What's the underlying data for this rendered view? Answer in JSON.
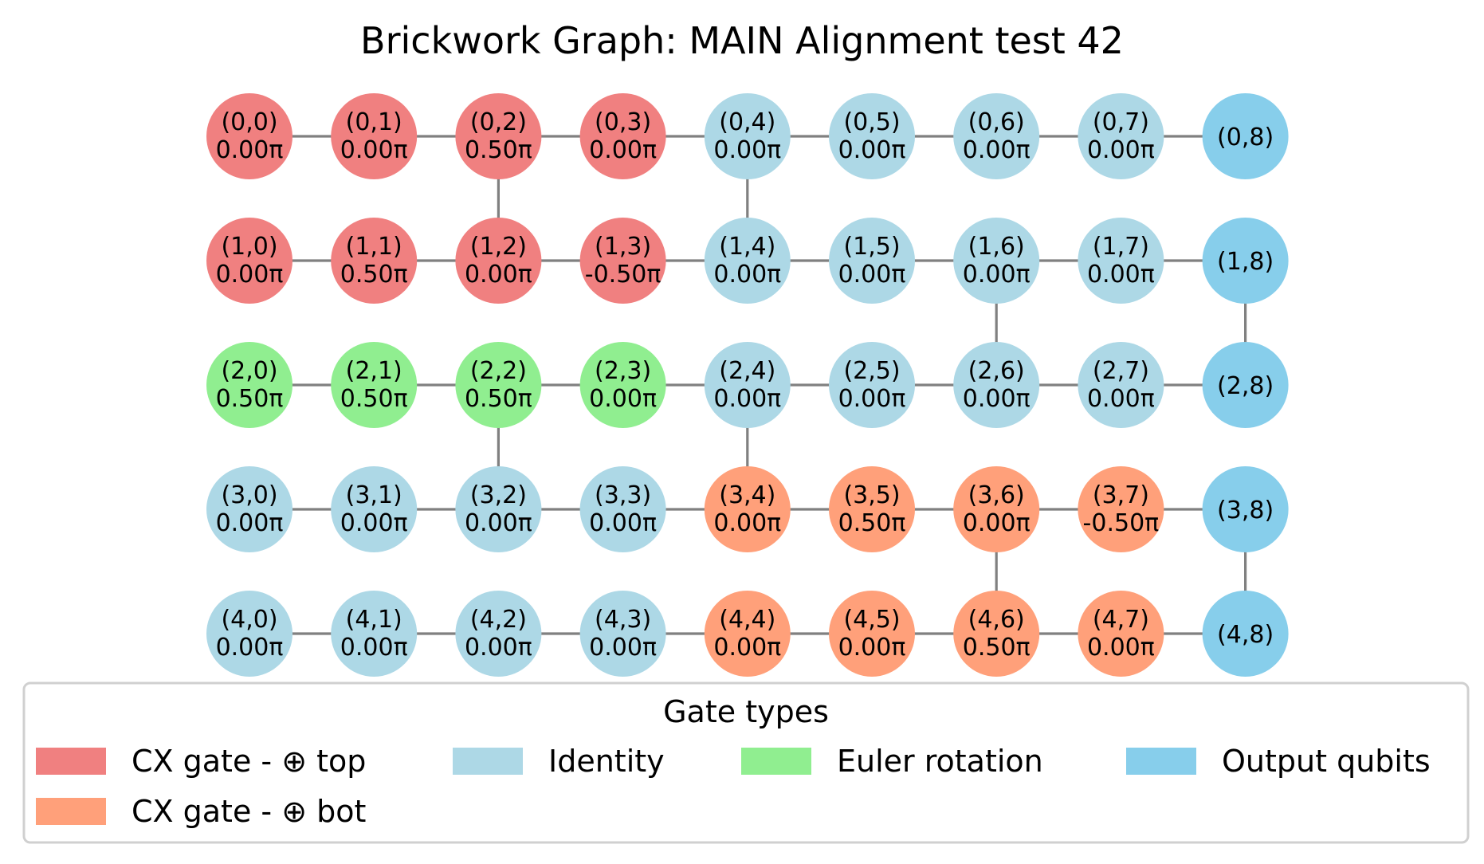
{
  "title": "Brickwork Graph: MAIN Alignment test 42",
  "colors": {
    "cx_top": "#f08080",
    "cx_bot": "#ffa07a",
    "identity": "#add8e6",
    "euler": "#90ee90",
    "output": "#87ceeb",
    "edge": "#808080"
  },
  "rows": 5,
  "cols": 9,
  "nodes": [
    {
      "id": "(0,0)",
      "angle": "0.00π",
      "type": "cx_top"
    },
    {
      "id": "(0,1)",
      "angle": "0.00π",
      "type": "cx_top"
    },
    {
      "id": "(0,2)",
      "angle": "0.50π",
      "type": "cx_top"
    },
    {
      "id": "(0,3)",
      "angle": "0.00π",
      "type": "cx_top"
    },
    {
      "id": "(0,4)",
      "angle": "0.00π",
      "type": "identity"
    },
    {
      "id": "(0,5)",
      "angle": "0.00π",
      "type": "identity"
    },
    {
      "id": "(0,6)",
      "angle": "0.00π",
      "type": "identity"
    },
    {
      "id": "(0,7)",
      "angle": "0.00π",
      "type": "identity"
    },
    {
      "id": "(0,8)",
      "angle": "",
      "type": "output"
    },
    {
      "id": "(1,0)",
      "angle": "0.00π",
      "type": "cx_top"
    },
    {
      "id": "(1,1)",
      "angle": "0.50π",
      "type": "cx_top"
    },
    {
      "id": "(1,2)",
      "angle": "0.00π",
      "type": "cx_top"
    },
    {
      "id": "(1,3)",
      "angle": "-0.50π",
      "type": "cx_top"
    },
    {
      "id": "(1,4)",
      "angle": "0.00π",
      "type": "identity"
    },
    {
      "id": "(1,5)",
      "angle": "0.00π",
      "type": "identity"
    },
    {
      "id": "(1,6)",
      "angle": "0.00π",
      "type": "identity"
    },
    {
      "id": "(1,7)",
      "angle": "0.00π",
      "type": "identity"
    },
    {
      "id": "(1,8)",
      "angle": "",
      "type": "output"
    },
    {
      "id": "(2,0)",
      "angle": "0.50π",
      "type": "euler"
    },
    {
      "id": "(2,1)",
      "angle": "0.50π",
      "type": "euler"
    },
    {
      "id": "(2,2)",
      "angle": "0.50π",
      "type": "euler"
    },
    {
      "id": "(2,3)",
      "angle": "0.00π",
      "type": "euler"
    },
    {
      "id": "(2,4)",
      "angle": "0.00π",
      "type": "identity"
    },
    {
      "id": "(2,5)",
      "angle": "0.00π",
      "type": "identity"
    },
    {
      "id": "(2,6)",
      "angle": "0.00π",
      "type": "identity"
    },
    {
      "id": "(2,7)",
      "angle": "0.00π",
      "type": "identity"
    },
    {
      "id": "(2,8)",
      "angle": "",
      "type": "output"
    },
    {
      "id": "(3,0)",
      "angle": "0.00π",
      "type": "identity"
    },
    {
      "id": "(3,1)",
      "angle": "0.00π",
      "type": "identity"
    },
    {
      "id": "(3,2)",
      "angle": "0.00π",
      "type": "identity"
    },
    {
      "id": "(3,3)",
      "angle": "0.00π",
      "type": "identity"
    },
    {
      "id": "(3,4)",
      "angle": "0.00π",
      "type": "cx_bot"
    },
    {
      "id": "(3,5)",
      "angle": "0.50π",
      "type": "cx_bot"
    },
    {
      "id": "(3,6)",
      "angle": "0.00π",
      "type": "cx_bot"
    },
    {
      "id": "(3,7)",
      "angle": "-0.50π",
      "type": "cx_bot"
    },
    {
      "id": "(3,8)",
      "angle": "",
      "type": "output"
    },
    {
      "id": "(4,0)",
      "angle": "0.00π",
      "type": "identity"
    },
    {
      "id": "(4,1)",
      "angle": "0.00π",
      "type": "identity"
    },
    {
      "id": "(4,2)",
      "angle": "0.00π",
      "type": "identity"
    },
    {
      "id": "(4,3)",
      "angle": "0.00π",
      "type": "identity"
    },
    {
      "id": "(4,4)",
      "angle": "0.00π",
      "type": "cx_bot"
    },
    {
      "id": "(4,5)",
      "angle": "0.00π",
      "type": "cx_bot"
    },
    {
      "id": "(4,6)",
      "angle": "0.50π",
      "type": "cx_bot"
    },
    {
      "id": "(4,7)",
      "angle": "0.00π",
      "type": "cx_bot"
    },
    {
      "id": "(4,8)",
      "angle": "",
      "type": "output"
    }
  ],
  "vertical_edges": [
    {
      "from": "(0,2)",
      "to": "(1,2)"
    },
    {
      "from": "(0,4)",
      "to": "(1,4)"
    },
    {
      "from": "(1,6)",
      "to": "(2,6)"
    },
    {
      "from": "(1,8)",
      "to": "(2,8)"
    },
    {
      "from": "(2,2)",
      "to": "(3,2)"
    },
    {
      "from": "(2,4)",
      "to": "(3,4)"
    },
    {
      "from": "(3,6)",
      "to": "(4,6)"
    },
    {
      "from": "(3,8)",
      "to": "(4,8)"
    }
  ],
  "legend": {
    "title": "Gate types",
    "items": [
      {
        "label": "CX gate - ⊕ top",
        "type": "cx_top"
      },
      {
        "label": "Identity",
        "type": "identity"
      },
      {
        "label": "Euler rotation",
        "type": "euler"
      },
      {
        "label": "Output qubits",
        "type": "output"
      },
      {
        "label": "CX gate - ⊕ bot",
        "type": "cx_bot"
      }
    ]
  }
}
